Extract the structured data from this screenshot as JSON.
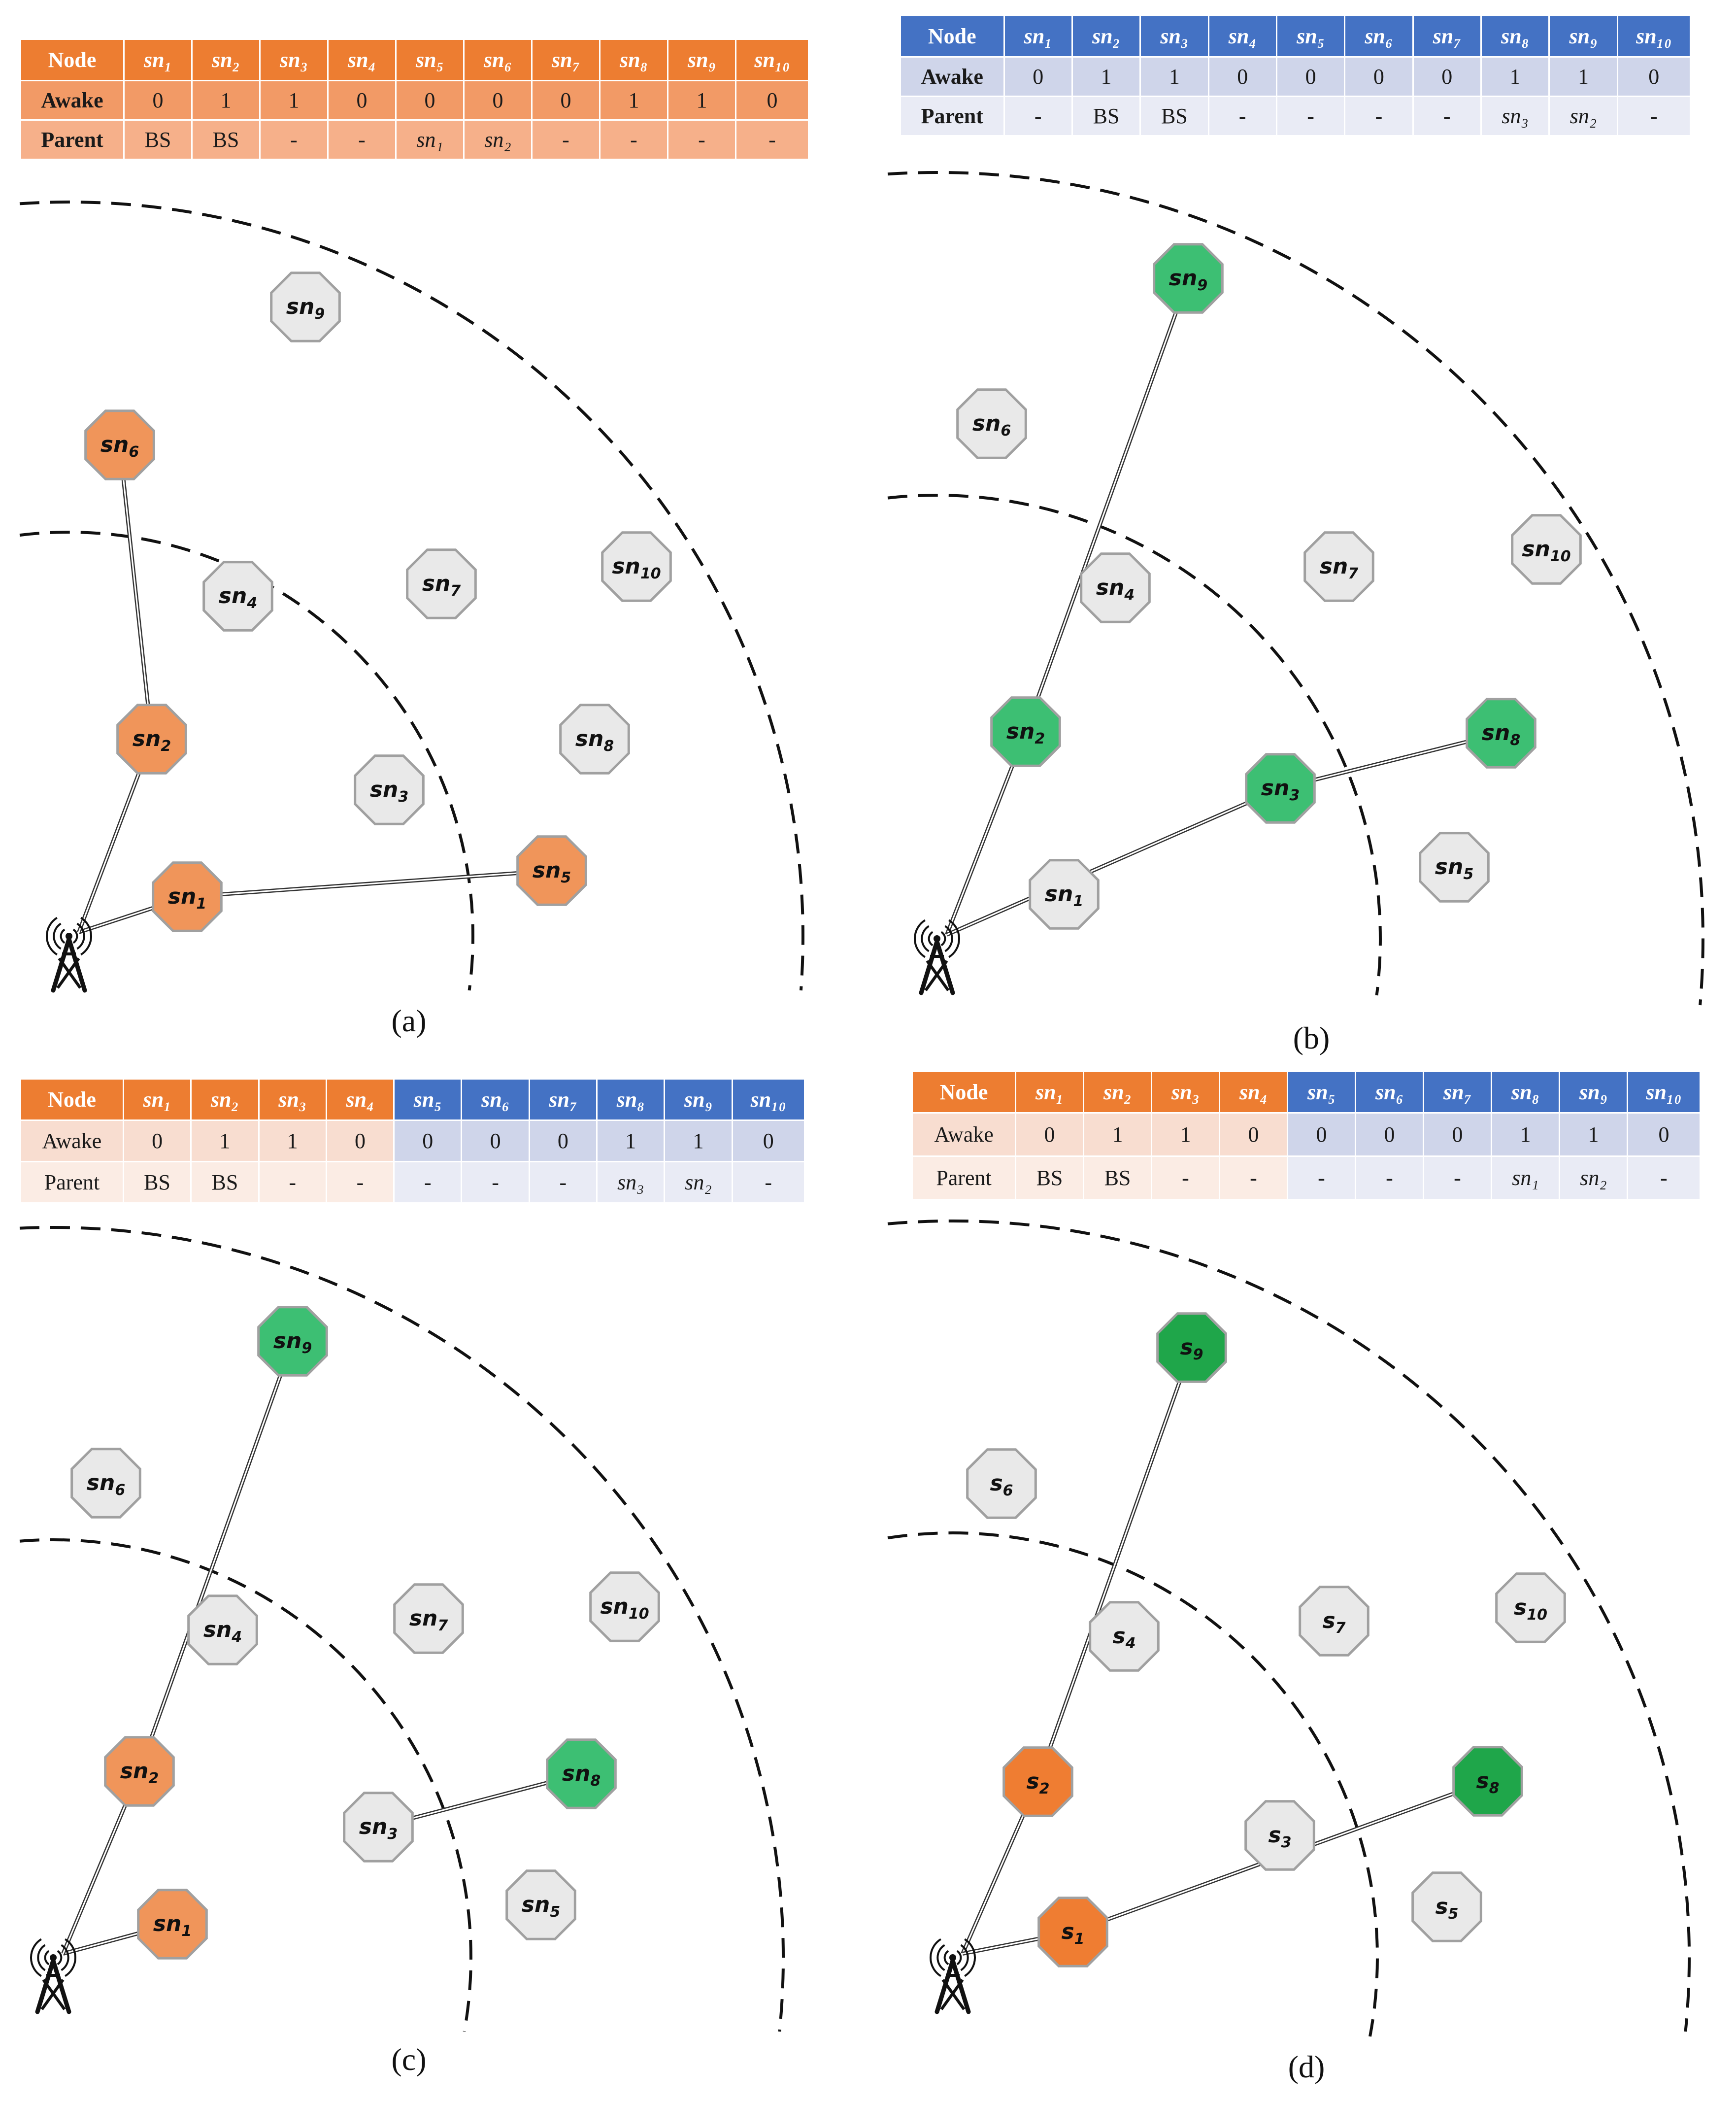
{
  "tables": {
    "a": {
      "header": [
        "Node",
        "sn₁",
        "sn₂",
        "sn₃",
        "sn₄",
        "sn₅",
        "sn₆",
        "sn₇",
        "sn₈",
        "sn₉",
        "sn₁₀"
      ],
      "awake": [
        "Awake",
        "0",
        "1",
        "1",
        "0",
        "0",
        "0",
        "0",
        "1",
        "1",
        "0"
      ],
      "parent": [
        "Parent",
        "BS",
        "BS",
        "-",
        "-",
        "sn₁",
        "sn₂",
        "-",
        "-",
        "-",
        "-"
      ]
    },
    "b": {
      "header": [
        "Node",
        "sn₁",
        "sn₂",
        "sn₃",
        "sn₄",
        "sn₅",
        "sn₆",
        "sn₇",
        "sn₈",
        "sn₉",
        "sn₁₀"
      ],
      "awake": [
        "Awake",
        "0",
        "1",
        "1",
        "0",
        "0",
        "0",
        "0",
        "1",
        "1",
        "0"
      ],
      "parent": [
        "Parent",
        "-",
        "BS",
        "BS",
        "-",
        "-",
        "-",
        "-",
        "sn₃",
        "sn₂",
        "-"
      ]
    },
    "c": {
      "header": [
        "Node",
        "sn₁",
        "sn₂",
        "sn₃",
        "sn₄",
        "sn₅",
        "sn₆",
        "sn₇",
        "sn₈",
        "sn₉",
        "sn₁₀"
      ],
      "awake": [
        "Awake",
        "0",
        "1",
        "1",
        "0",
        "0",
        "0",
        "0",
        "1",
        "1",
        "0"
      ],
      "parent": [
        "Parent",
        "BS",
        "BS",
        "-",
        "-",
        "-",
        "-",
        "-",
        "sn₃",
        "sn₂",
        "-"
      ]
    },
    "d": {
      "header": [
        "Node",
        "sn₁",
        "sn₂",
        "sn₃",
        "sn₄",
        "sn₅",
        "sn₆",
        "sn₇",
        "sn₈",
        "sn₉",
        "sn₁₀"
      ],
      "awake": [
        "Awake",
        "0",
        "1",
        "1",
        "0",
        "0",
        "0",
        "0",
        "1",
        "1",
        "0"
      ],
      "parent": [
        "Parent",
        "BS",
        "BS",
        "-",
        "-",
        "-",
        "-",
        "-",
        "sn₁",
        "sn₂",
        "-"
      ]
    }
  },
  "nodes": {
    "a": [
      "sn1",
      "sn2",
      "sn3",
      "sn4",
      "sn5",
      "sn6",
      "sn7",
      "sn8",
      "sn9",
      "sn10"
    ],
    "b": [
      "sn1",
      "sn2",
      "sn3",
      "sn4",
      "sn5",
      "sn6",
      "sn7",
      "sn8",
      "sn9",
      "sn10"
    ],
    "c": [
      "sn1",
      "sn2",
      "sn3",
      "sn4",
      "sn5",
      "sn6",
      "sn7",
      "sn8",
      "sn9",
      "sn10"
    ],
    "d": [
      "s1",
      "s2",
      "s3",
      "s4",
      "s5",
      "s6",
      "s7",
      "s8",
      "s9",
      "s10"
    ]
  },
  "node_states": {
    "a": [
      "orange",
      "orange",
      "gray",
      "gray",
      "orange",
      "orange",
      "gray",
      "gray",
      "gray",
      "gray"
    ],
    "b": [
      "gray",
      "green",
      "green",
      "gray",
      "gray",
      "gray",
      "gray",
      "green",
      "green",
      "gray"
    ],
    "c": [
      "orange",
      "orange",
      "gray",
      "gray",
      "gray",
      "gray",
      "gray",
      "green",
      "green",
      "gray"
    ],
    "d": [
      "orange",
      "orange",
      "gray",
      "gray",
      "gray",
      "gray",
      "gray",
      "darkgreen",
      "darkgreen",
      "gray"
    ]
  },
  "links": {
    "a": [
      [
        "bs",
        "sn1"
      ],
      [
        "sn1",
        "sn5"
      ],
      [
        "bs",
        "sn2"
      ],
      [
        "sn2",
        "sn6"
      ]
    ],
    "b": [
      [
        "bs",
        "sn2"
      ],
      [
        "sn2",
        "sn9"
      ],
      [
        "bs",
        "sn3"
      ],
      [
        "sn3",
        "sn8"
      ]
    ],
    "c": [
      [
        "bs",
        "sn1"
      ],
      [
        "bs",
        "sn2"
      ],
      [
        "sn2",
        "sn9"
      ],
      [
        "sn3",
        "sn8"
      ]
    ],
    "d": [
      [
        "bs",
        "s2"
      ],
      [
        "s2",
        "s9"
      ],
      [
        "bs",
        "s1"
      ],
      [
        "s1",
        "s8"
      ]
    ]
  },
  "captions": {
    "a": "(a)",
    "b": "(b)",
    "c": "(c)",
    "d": "(d)"
  },
  "colors": {
    "orange_header": "#ed7d31",
    "orange_awake": "#f29a66",
    "orange_parent": "#f6b08a",
    "light_orange_awake": "#f8ddd0",
    "light_orange_parent": "#fbece4",
    "blue_header": "#4472c4",
    "blue_awake": "#cfd5ea",
    "blue_parent": "#e9ebf5",
    "node_orange": "#f0955a",
    "node_orange_d": "#ef7d32",
    "node_green": "#3dbf73",
    "node_darkgreen": "#1fa64a",
    "node_gray": "#e9e9e9",
    "node_stroke": "#a0a0a0"
  }
}
